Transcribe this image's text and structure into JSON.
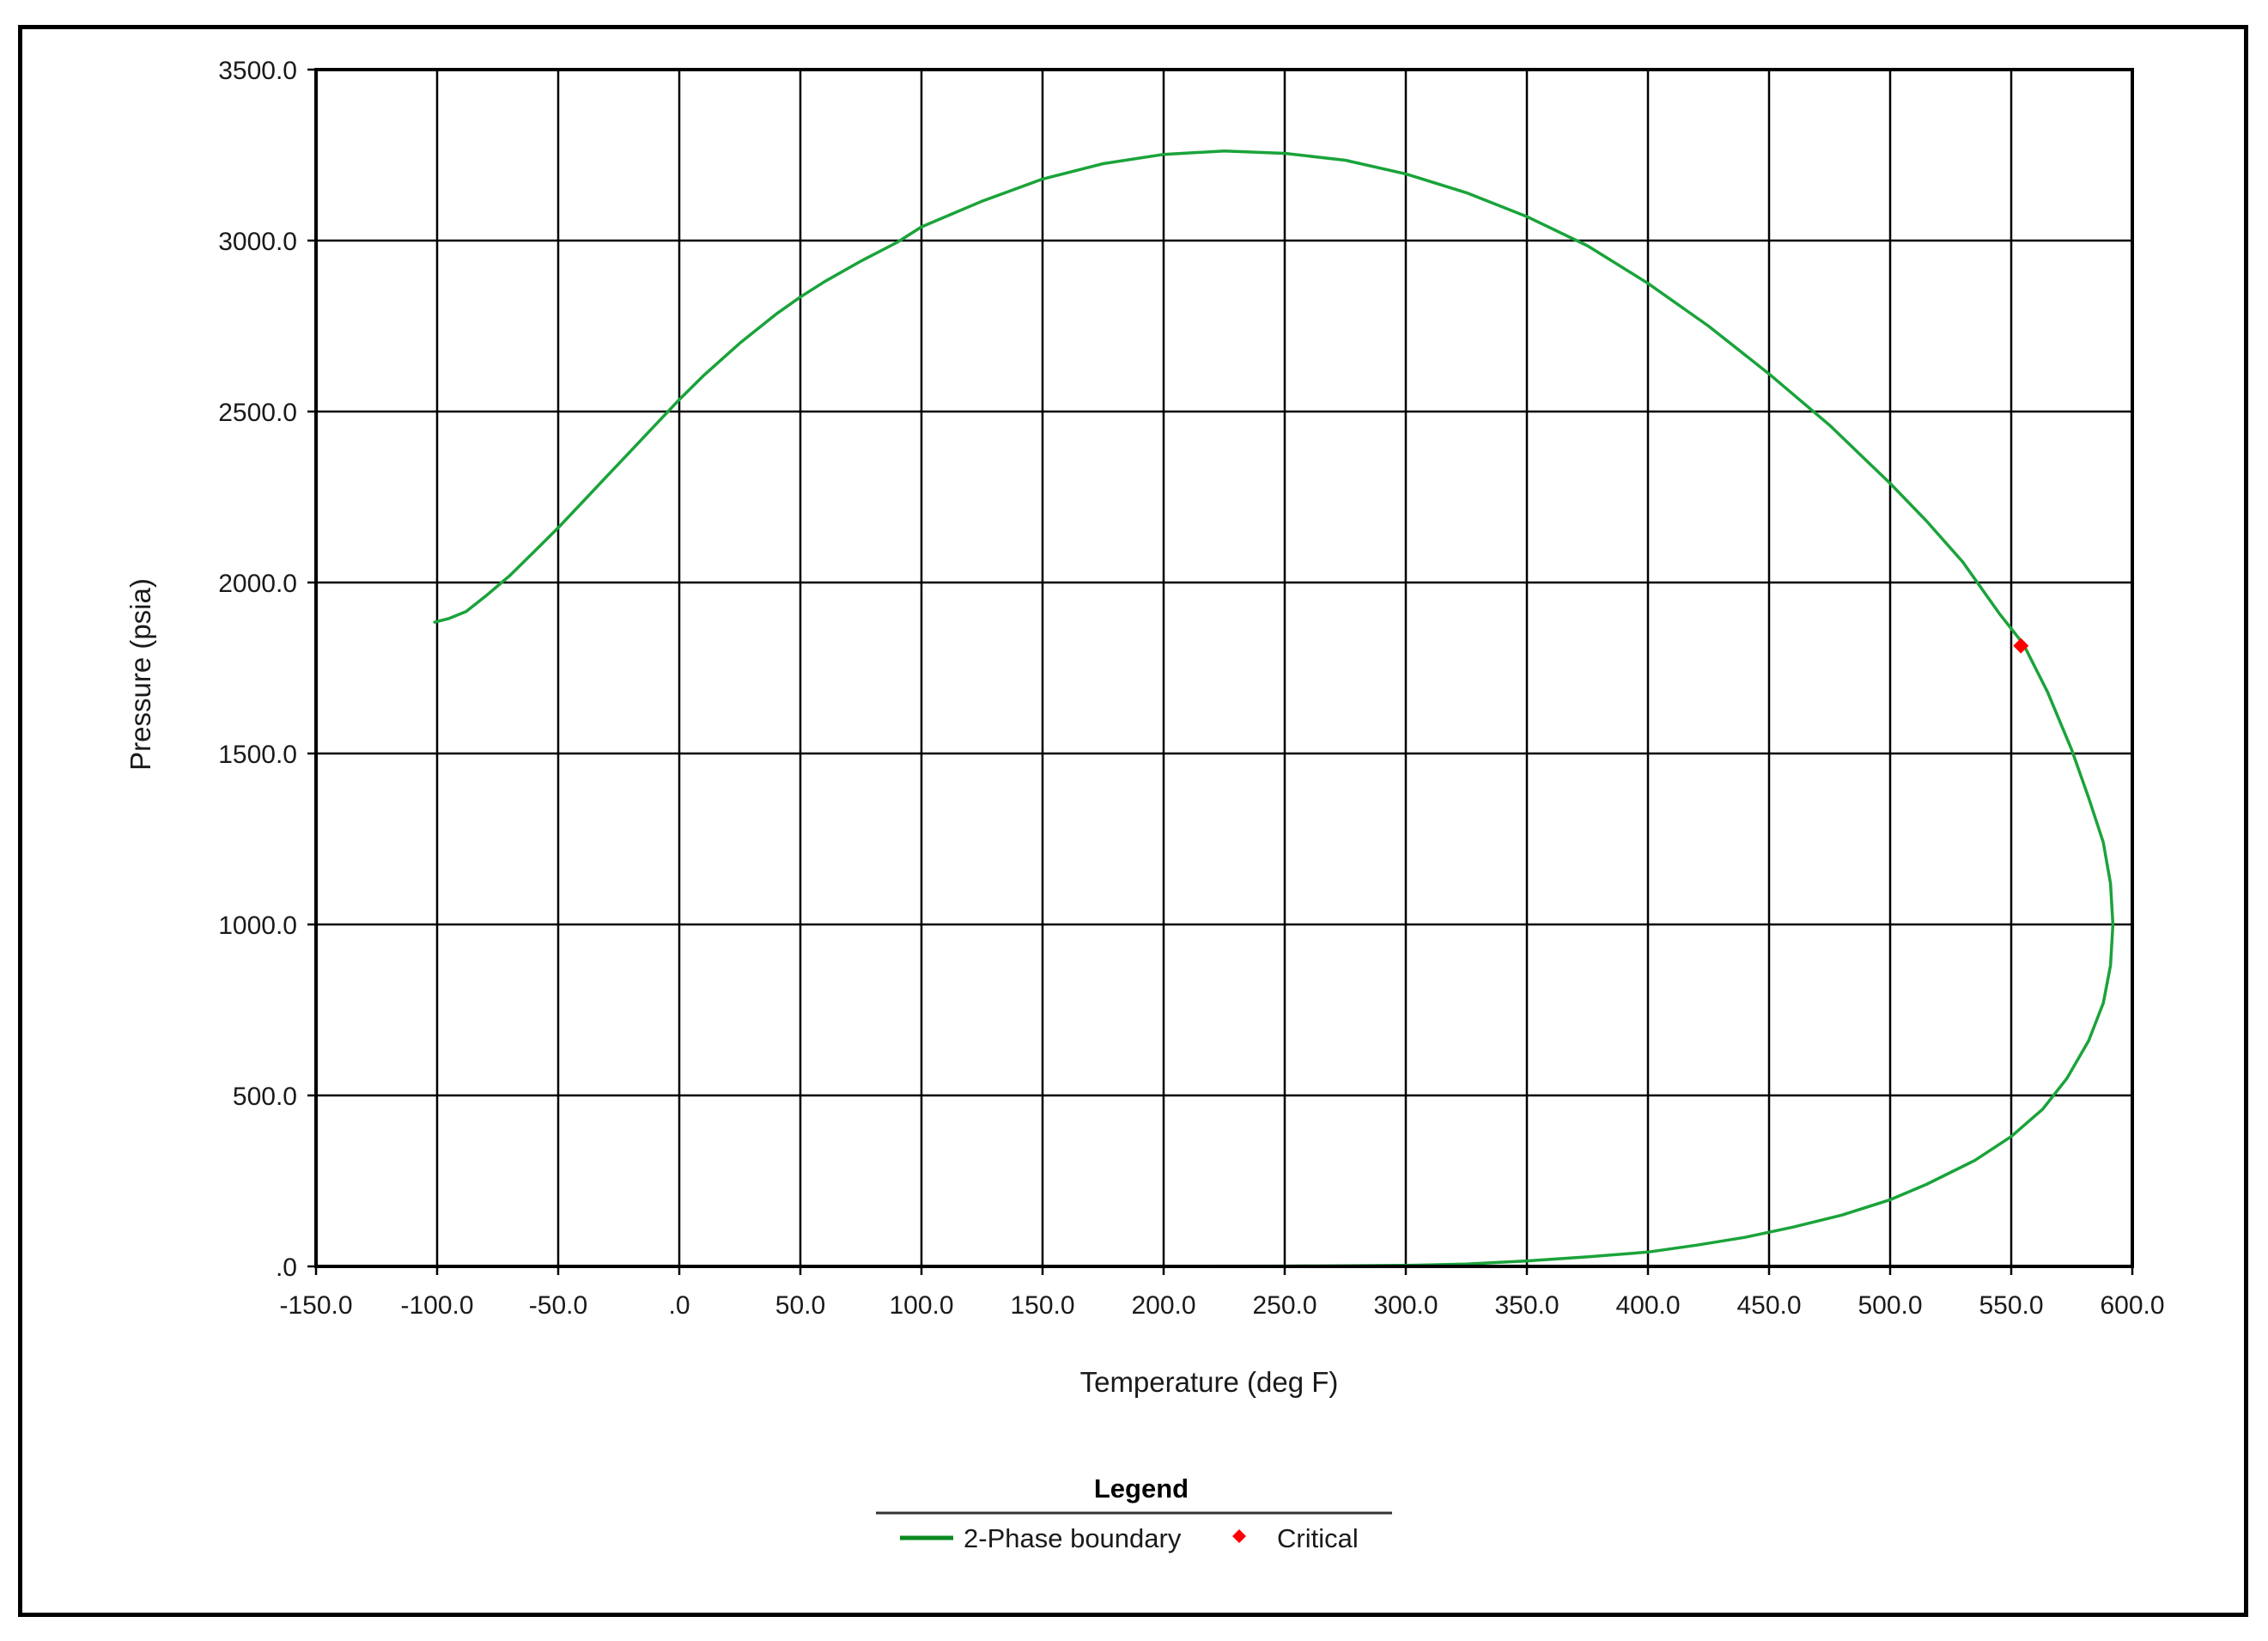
{
  "chart_data": {
    "type": "line",
    "xlabel": "Temperature (deg F)",
    "ylabel": "Pressure (psia)",
    "xlim": [
      -150,
      600
    ],
    "ylim": [
      0,
      3500
    ],
    "x_ticks": [
      -150,
      -100,
      -50,
      0,
      50,
      100,
      150,
      200,
      250,
      300,
      350,
      400,
      450,
      500,
      550,
      600
    ],
    "x_tick_labels": [
      "-150.0",
      "-100.0",
      "-50.0",
      ".0",
      "50.0",
      "100.0",
      "150.0",
      "200.0",
      "250.0",
      "300.0",
      "350.0",
      "400.0",
      "450.0",
      "500.0",
      "550.0",
      "600.0"
    ],
    "y_ticks": [
      0,
      500,
      1000,
      1500,
      2000,
      2500,
      3000,
      3500
    ],
    "y_tick_labels": [
      ".0",
      "500.0",
      "1000.0",
      "1500.0",
      "2000.0",
      "2500.0",
      "3000.0",
      "3500.0"
    ],
    "grid": true,
    "legend": {
      "title": "Legend",
      "placement": "bottom-center",
      "entries": [
        "2-Phase boundary",
        "Critical"
      ]
    },
    "series": [
      {
        "name": "2-Phase boundary",
        "type": "line",
        "color": "#1aa33a",
        "points": [
          [
            -101,
            1884
          ],
          [
            -95,
            1895
          ],
          [
            -88,
            1915
          ],
          [
            -80,
            1960
          ],
          [
            -70,
            2020
          ],
          [
            -60,
            2090
          ],
          [
            -50,
            2160
          ],
          [
            -40,
            2235
          ],
          [
            -30,
            2310
          ],
          [
            -20,
            2385
          ],
          [
            -10,
            2460
          ],
          [
            0,
            2535
          ],
          [
            10,
            2605
          ],
          [
            25,
            2700
          ],
          [
            40,
            2785
          ],
          [
            50,
            2835
          ],
          [
            60,
            2880
          ],
          [
            75,
            2940
          ],
          [
            90,
            2995
          ],
          [
            100,
            3040
          ],
          [
            110,
            3070
          ],
          [
            125,
            3115
          ],
          [
            150,
            3180
          ],
          [
            175,
            3225
          ],
          [
            200,
            3252
          ],
          [
            225,
            3262
          ],
          [
            250,
            3255
          ],
          [
            275,
            3235
          ],
          [
            300,
            3195
          ],
          [
            325,
            3140
          ],
          [
            350,
            3070
          ],
          [
            375,
            2985
          ],
          [
            400,
            2875
          ],
          [
            425,
            2750
          ],
          [
            450,
            2610
          ],
          [
            475,
            2460
          ],
          [
            500,
            2290
          ],
          [
            515,
            2180
          ],
          [
            530,
            2060
          ],
          [
            545,
            1910
          ],
          [
            555,
            1820
          ],
          [
            565,
            1680
          ],
          [
            575,
            1510
          ],
          [
            582,
            1370
          ],
          [
            588,
            1240
          ],
          [
            591,
            1120
          ],
          [
            592,
            1000
          ],
          [
            591,
            880
          ],
          [
            588,
            770
          ],
          [
            582,
            660
          ],
          [
            573,
            550
          ],
          [
            563,
            460
          ],
          [
            550,
            380
          ],
          [
            535,
            310
          ],
          [
            515,
            240
          ],
          [
            500,
            195
          ],
          [
            480,
            150
          ],
          [
            460,
            115
          ],
          [
            440,
            85
          ],
          [
            420,
            62
          ],
          [
            400,
            42
          ],
          [
            375,
            28
          ],
          [
            350,
            16
          ],
          [
            325,
            7
          ],
          [
            300,
            3
          ],
          [
            275,
            2
          ],
          [
            250,
            1
          ],
          [
            200,
            0.5
          ],
          [
            150,
            0.3
          ],
          [
            100,
            0.2
          ],
          [
            50,
            0.1
          ],
          [
            15,
            0.05
          ]
        ]
      },
      {
        "name": "Critical",
        "type": "scatter",
        "color": "#ff0000",
        "points": [
          [
            554,
            1815
          ]
        ]
      }
    ]
  }
}
